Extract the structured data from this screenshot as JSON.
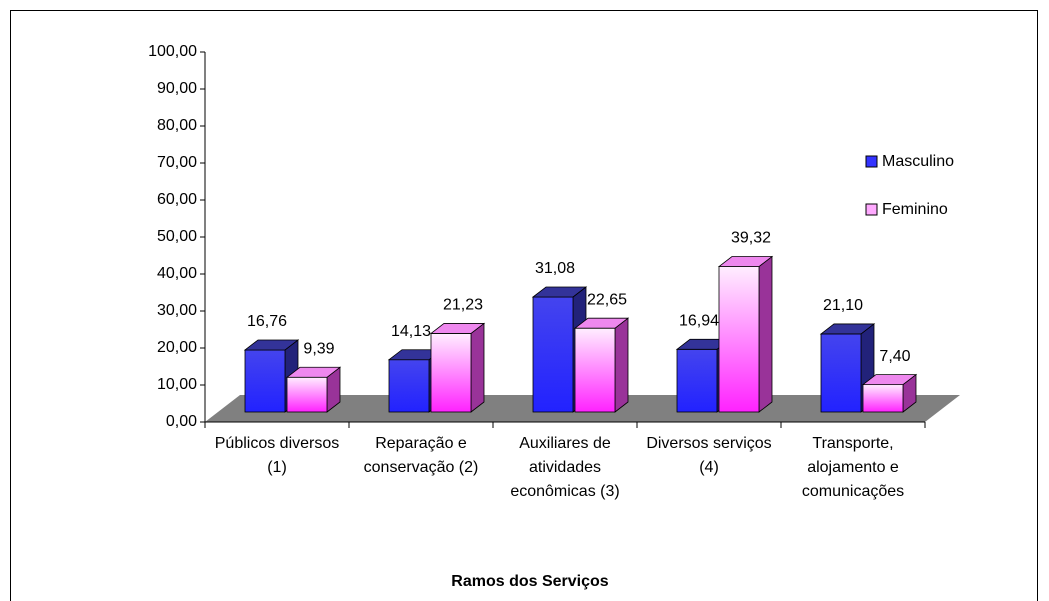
{
  "chart_data": {
    "type": "bar3d",
    "x_label": "Ramos dos Serviços",
    "categories": [
      "Públicos diversos (1)",
      "Reparação e conservação (2)",
      "Auxiliares de atividades econômicas (3)",
      "Diversos serviços (4)",
      "Transporte, alojamento e comunicações"
    ],
    "series": [
      {
        "name": "Masculino",
        "color": "#3333ff",
        "values": [
          16.76,
          14.13,
          31.08,
          16.94,
          21.1
        ],
        "value_labels": [
          "16,76",
          "14,13",
          "31,08",
          "16,94",
          "21,10"
        ]
      },
      {
        "name": "Feminino",
        "color": "#ff33ff",
        "values": [
          9.39,
          21.23,
          22.65,
          39.32,
          7.4
        ],
        "value_labels": [
          "9,39",
          "21,23",
          "22,65",
          "39,32",
          "7,40"
        ]
      }
    ],
    "ylim": [
      0,
      100
    ],
    "yticks": [
      {
        "value": 0,
        "label": "0,00"
      },
      {
        "value": 10,
        "label": "10,00"
      },
      {
        "value": 20,
        "label": "20,00"
      },
      {
        "value": 30,
        "label": "30,00"
      },
      {
        "value": 40,
        "label": "40,00"
      },
      {
        "value": 50,
        "label": "50,00"
      },
      {
        "value": 60,
        "label": "60,00"
      },
      {
        "value": 70,
        "label": "70,00"
      },
      {
        "value": 80,
        "label": "80,00"
      },
      {
        "value": 90,
        "label": "90,00"
      },
      {
        "value": 100,
        "label": "100,00"
      }
    ],
    "legend": "right"
  }
}
